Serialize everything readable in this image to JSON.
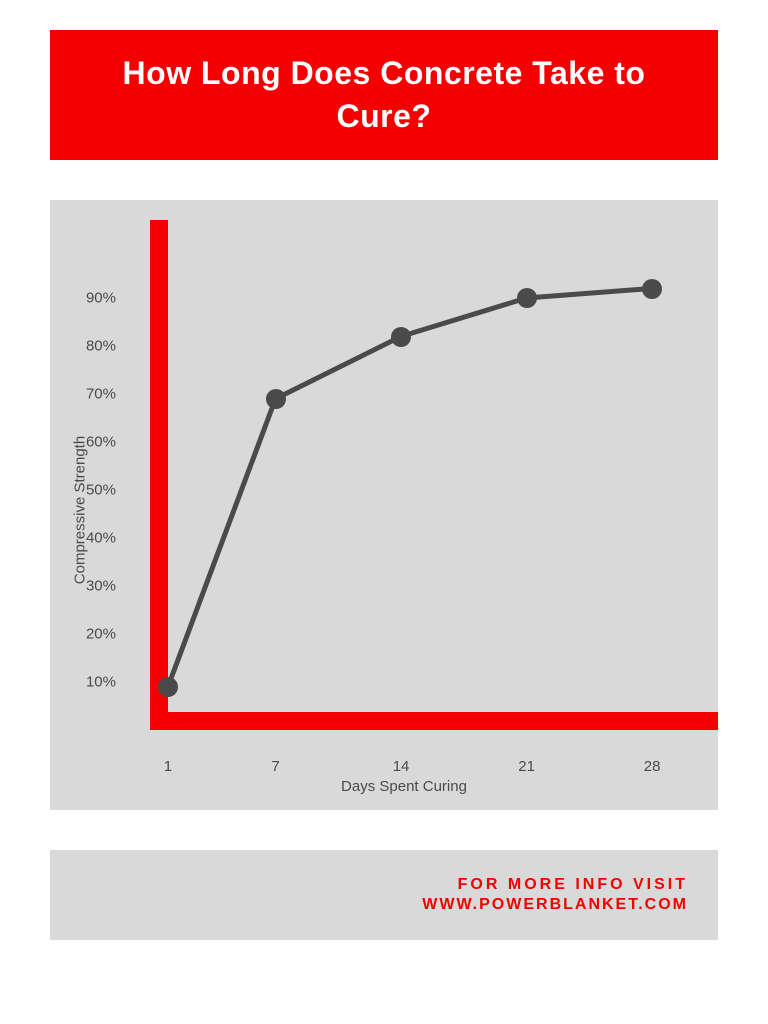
{
  "title": "How Long Does Concrete Take to Cure?",
  "colors": {
    "title_bg": "#f40000",
    "chart_bg": "#d9d9d9",
    "axis_frame": "#f40000",
    "line": "#4a4a4a",
    "marker": "#4a4a4a",
    "footer_bg": "#d9d9d9",
    "footer_text": "#f40000",
    "tick_text": "#4a4a4a"
  },
  "chart": {
    "type": "line",
    "x_label": "Days Spent Curing",
    "y_label": "Compressive Strength",
    "x_values": [
      1,
      7,
      14,
      21,
      28
    ],
    "y_values": [
      9,
      69,
      82,
      90,
      92
    ],
    "x_ticks": [
      1,
      7,
      14,
      21,
      28
    ],
    "y_ticks": [
      10,
      20,
      30,
      40,
      50,
      60,
      70,
      80,
      90
    ],
    "y_tick_suffix": "%",
    "xlim": [
      0,
      30
    ],
    "ylim": [
      0,
      100
    ],
    "line_width": 5,
    "marker_radius": 10,
    "marker_style": "circle"
  },
  "footer": {
    "line1": "FOR MORE INFO VISIT",
    "line2": "WWW.POWERBLANKET.COM"
  },
  "typography": {
    "title_fontsize": 32,
    "title_weight": "bold",
    "label_fontsize": 15,
    "tick_fontsize": 15,
    "footer_fontsize": 16
  }
}
